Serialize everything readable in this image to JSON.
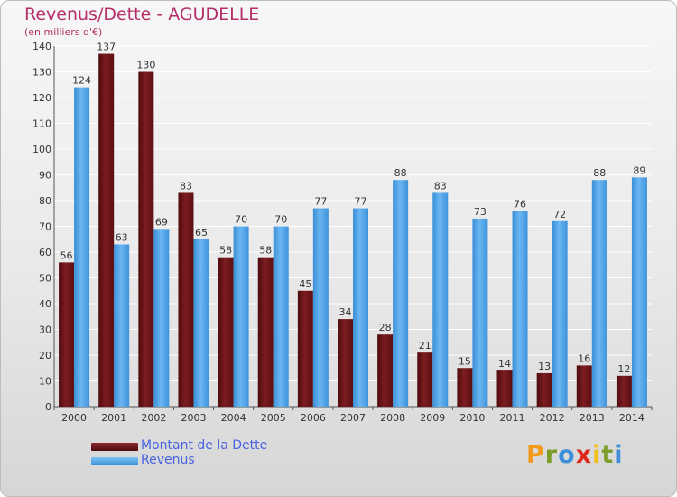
{
  "title": "Revenus/Dette - AGUDELLE",
  "subtitle": "(en milliers d'€)",
  "colors": {
    "dette": "#6e1418",
    "revenus": "#4b9fe3",
    "axis_text": "#333333",
    "title": "#b5306a",
    "legend_text": "#4a63e0"
  },
  "chart_data": {
    "type": "bar",
    "categories": [
      "2000",
      "2001",
      "2002",
      "2003",
      "2004",
      "2005",
      "2006",
      "2007",
      "2008",
      "2009",
      "2010",
      "2011",
      "2012",
      "2013",
      "2014"
    ],
    "series": [
      {
        "name": "Montant de la Dette",
        "values": [
          56,
          137,
          130,
          83,
          58,
          58,
          45,
          34,
          28,
          21,
          15,
          14,
          13,
          16,
          12
        ]
      },
      {
        "name": "Revenus",
        "values": [
          124,
          63,
          69,
          65,
          70,
          70,
          77,
          77,
          88,
          83,
          73,
          76,
          72,
          88,
          89
        ]
      }
    ],
    "ylim": [
      0,
      140
    ],
    "yticks": [
      0,
      10,
      20,
      30,
      40,
      50,
      60,
      70,
      80,
      90,
      100,
      110,
      120,
      130,
      140
    ],
    "grid": true
  },
  "legend": {
    "dette_label": "Montant de la Dette",
    "revenus_label": "Revenus"
  },
  "logo": {
    "letters": [
      "P",
      "r",
      "o",
      "x",
      "i",
      "t",
      "i"
    ],
    "colors": [
      "#f29a1b",
      "#7b9d2a",
      "#3f8fd8",
      "#e1261c",
      "#f2c01b",
      "#7b9d2a",
      "#3f8fd8"
    ]
  }
}
